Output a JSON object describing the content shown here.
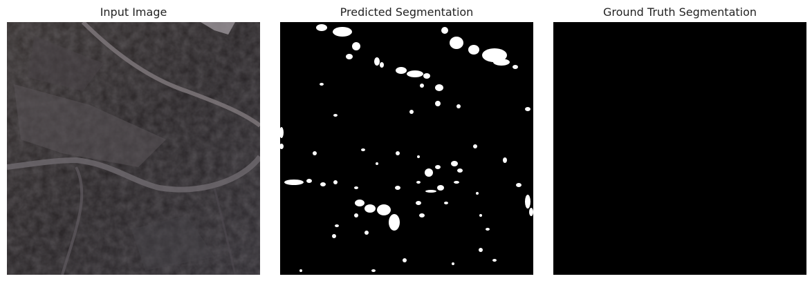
{
  "figure": {
    "panels": [
      {
        "title": "Input Image",
        "content": "satellite-image"
      },
      {
        "title": "Predicted Segmentation",
        "content": "binary-mask"
      },
      {
        "title": "Ground Truth Segmentation",
        "content": "empty-mask"
      }
    ]
  },
  "colors": {
    "background": "#ffffff",
    "mask_background": "#000000",
    "mask_foreground": "#ffffff",
    "terrain_dark": "#2a2628",
    "terrain_river": "#7a7478"
  }
}
